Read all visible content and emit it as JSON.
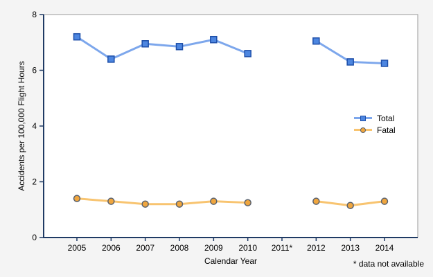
{
  "figure": {
    "background": "#f4f4f4",
    "plot_bg": "#ffffff",
    "plot_border_color": "#9a9a9a",
    "axis_color": "#1f3a64"
  },
  "chart_data": {
    "type": "line",
    "title": "",
    "xlabel": "Calendar Year",
    "ylabel": "Accidents per 100,000 Flight Hours",
    "footnote": "* data not available",
    "ylim": [
      0,
      8
    ],
    "yticks": [
      0,
      2,
      4,
      6,
      8
    ],
    "grid": false,
    "legend_position": "inside-right-middle",
    "categories": [
      "2005",
      "2006",
      "2007",
      "2008",
      "2009",
      "2010",
      "2011*",
      "2012",
      "2013",
      "2014"
    ],
    "series": [
      {
        "name": "Total",
        "marker": "square",
        "line_color": "#7da7ec",
        "marker_fill": "#4d86e0",
        "marker_edge": "#1d4ea8",
        "values": [
          7.2,
          6.4,
          6.95,
          6.85,
          7.1,
          6.6,
          null,
          7.05,
          6.3,
          6.25
        ]
      },
      {
        "name": "Fatal",
        "marker": "circle",
        "line_color": "#f8c470",
        "marker_fill": "#f0a63e",
        "marker_edge": "#59616e",
        "values": [
          1.4,
          1.3,
          1.2,
          1.2,
          1.3,
          1.25,
          null,
          1.3,
          1.15,
          1.3
        ]
      }
    ]
  }
}
